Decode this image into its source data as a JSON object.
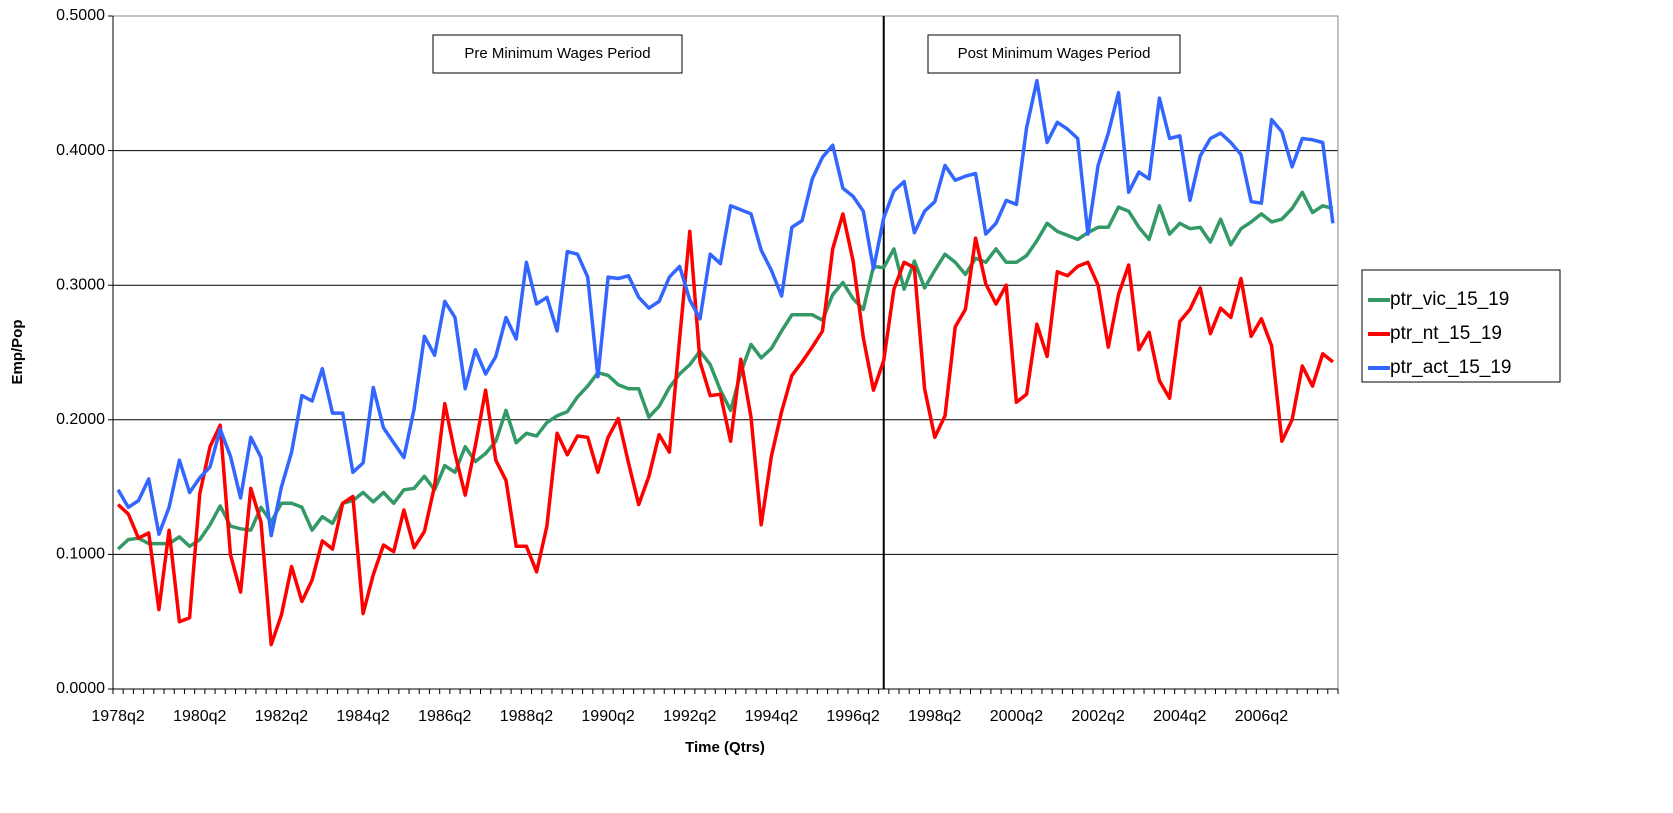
{
  "chart_data": {
    "type": "line",
    "x_label": "Time (Qtrs)",
    "y_label": "Emp/Pop",
    "annotations": [
      "Pre Minimum Wages Period",
      "Post Minimum Wages Period"
    ],
    "categories": [
      "1978q2",
      null,
      null,
      null,
      null,
      null,
      null,
      null,
      "1980q2",
      null,
      null,
      null,
      null,
      null,
      null,
      null,
      "1982q2",
      null,
      null,
      null,
      null,
      null,
      null,
      null,
      "1984q2",
      null,
      null,
      null,
      null,
      null,
      null,
      null,
      "1986q2",
      null,
      null,
      null,
      null,
      null,
      null,
      null,
      "1988q2",
      null,
      null,
      null,
      null,
      null,
      null,
      null,
      "1990q2",
      null,
      null,
      null,
      null,
      null,
      null,
      null,
      "1992q2",
      null,
      null,
      null,
      null,
      null,
      null,
      null,
      "1994q2",
      null,
      null,
      null,
      null,
      null,
      null,
      null,
      "1996q2",
      null,
      null,
      null,
      null,
      null,
      null,
      null,
      "1998q2",
      null,
      null,
      null,
      null,
      null,
      null,
      null,
      "2000q2",
      null,
      null,
      null,
      null,
      null,
      null,
      null,
      "2002q2",
      null,
      null,
      null,
      null,
      null,
      null,
      null,
      "2004q2",
      null,
      null,
      null,
      null,
      null,
      null,
      null,
      "2006q2",
      null,
      null,
      null,
      null,
      null,
      null,
      null
    ],
    "series": [
      {
        "name": "ptr_vic_15_19",
        "color": "#339966",
        "values": [
          0.104,
          0.111,
          0.112,
          0.108,
          0.108,
          0.108,
          0.113,
          0.106,
          0.111,
          0.122,
          0.136,
          0.121,
          0.119,
          0.118,
          0.135,
          0.124,
          0.138,
          0.138,
          0.135,
          0.118,
          0.128,
          0.123,
          0.138,
          0.14,
          0.146,
          0.139,
          0.146,
          0.138,
          0.148,
          0.149,
          0.158,
          0.148,
          0.166,
          0.161,
          0.18,
          0.169,
          0.175,
          0.184,
          0.207,
          0.183,
          0.19,
          0.188,
          0.198,
          0.203,
          0.206,
          0.217,
          0.225,
          0.235,
          0.233,
          0.226,
          0.223,
          0.223,
          0.202,
          0.21,
          0.224,
          0.234,
          0.241,
          0.251,
          0.241,
          0.222,
          0.207,
          0.235,
          0.256,
          0.246,
          0.253,
          0.266,
          0.278,
          0.278,
          0.278,
          0.274,
          0.293,
          0.302,
          0.29,
          0.282,
          0.314,
          0.313,
          0.327,
          0.297,
          0.318,
          0.298,
          0.311,
          0.323,
          0.317,
          0.308,
          0.32,
          0.317,
          0.327,
          0.317,
          0.317,
          0.322,
          0.333,
          0.346,
          0.34,
          0.337,
          0.334,
          0.339,
          0.343,
          0.343,
          0.358,
          0.355,
          0.343,
          0.334,
          0.359,
          0.338,
          0.346,
          0.342,
          0.343,
          0.332,
          0.349,
          0.33,
          0.342,
          0.347,
          0.353,
          0.347,
          0.349,
          0.357,
          0.369,
          0.354,
          0.359,
          0.357
        ]
      },
      {
        "name": "ptr_nt_15_19",
        "color": "#ff0000",
        "values": [
          0.137,
          0.13,
          0.112,
          0.116,
          0.059,
          0.118,
          0.05,
          0.053,
          0.145,
          0.18,
          0.196,
          0.1,
          0.072,
          0.149,
          0.124,
          0.033,
          0.055,
          0.091,
          0.065,
          0.081,
          0.11,
          0.104,
          0.138,
          0.143,
          0.056,
          0.085,
          0.107,
          0.102,
          0.133,
          0.105,
          0.117,
          0.151,
          0.212,
          0.175,
          0.144,
          0.181,
          0.222,
          0.17,
          0.155,
          0.106,
          0.106,
          0.087,
          0.121,
          0.19,
          0.174,
          0.188,
          0.187,
          0.161,
          0.187,
          0.201,
          0.168,
          0.137,
          0.158,
          0.189,
          0.176,
          0.26,
          0.34,
          0.243,
          0.218,
          0.219,
          0.184,
          0.245,
          0.202,
          0.122,
          0.173,
          0.206,
          0.233,
          0.243,
          0.254,
          0.266,
          0.327,
          0.353,
          0.318,
          0.261,
          0.222,
          0.244,
          0.297,
          0.317,
          0.313,
          0.223,
          0.187,
          0.203,
          0.269,
          0.282,
          0.335,
          0.301,
          0.286,
          0.3,
          0.213,
          0.219,
          0.271,
          0.247,
          0.31,
          0.307,
          0.314,
          0.317,
          0.3,
          0.254,
          0.293,
          0.315,
          0.252,
          0.265,
          0.229,
          0.216,
          0.273,
          0.282,
          0.298,
          0.264,
          0.283,
          0.276,
          0.305,
          0.262,
          0.275,
          0.255,
          0.184,
          0.2,
          0.24,
          0.225,
          0.249,
          0.243
        ]
      },
      {
        "name": "ptr_act_15_19",
        "color": "#3366ff",
        "values": [
          0.148,
          0.135,
          0.14,
          0.156,
          0.115,
          0.135,
          0.17,
          0.146,
          0.157,
          0.165,
          0.193,
          0.173,
          0.142,
          0.187,
          0.172,
          0.114,
          0.15,
          0.176,
          0.218,
          0.214,
          0.238,
          0.205,
          0.205,
          0.161,
          0.168,
          0.224,
          0.194,
          0.183,
          0.172,
          0.208,
          0.262,
          0.248,
          0.288,
          0.276,
          0.223,
          0.252,
          0.234,
          0.247,
          0.276,
          0.26,
          0.317,
          0.286,
          0.291,
          0.266,
          0.325,
          0.323,
          0.306,
          0.232,
          0.306,
          0.305,
          0.307,
          0.291,
          0.283,
          0.288,
          0.306,
          0.314,
          0.289,
          0.275,
          0.323,
          0.316,
          0.359,
          0.356,
          0.353,
          0.326,
          0.311,
          0.292,
          0.343,
          0.348,
          0.379,
          0.395,
          0.404,
          0.372,
          0.366,
          0.355,
          0.312,
          0.35,
          0.37,
          0.377,
          0.339,
          0.355,
          0.362,
          0.389,
          0.378,
          0.381,
          0.383,
          0.338,
          0.346,
          0.363,
          0.36,
          0.417,
          0.452,
          0.406,
          0.421,
          0.416,
          0.409,
          0.338,
          0.389,
          0.413,
          0.443,
          0.369,
          0.384,
          0.379,
          0.439,
          0.409,
          0.411,
          0.363,
          0.396,
          0.409,
          0.413,
          0.406,
          0.397,
          0.362,
          0.361,
          0.423,
          0.414,
          0.388,
          0.409,
          0.408,
          0.406,
          0.346
        ]
      }
    ],
    "ylim": [
      0,
      0.5
    ],
    "yticks": [
      {
        "value": 0,
        "label": "0.0000"
      },
      {
        "value": 0.1,
        "label": "0.1000"
      },
      {
        "value": 0.2,
        "label": "0.2000"
      },
      {
        "value": 0.3,
        "label": "0.3000"
      },
      {
        "value": 0.4,
        "label": "0.4000"
      },
      {
        "value": 0.5,
        "label": "0.5000"
      }
    ],
    "grid": true,
    "legend": "right"
  }
}
